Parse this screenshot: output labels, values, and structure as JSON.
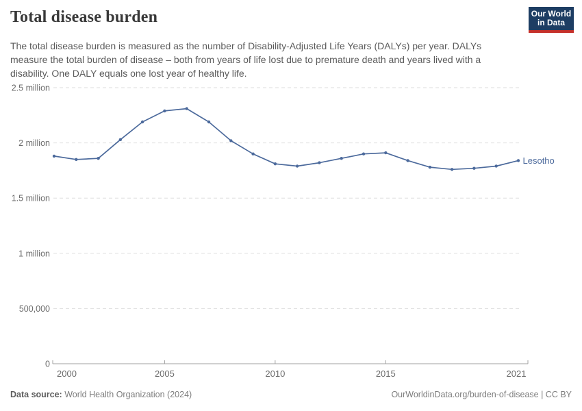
{
  "header": {
    "title": "Total disease burden",
    "subtitle": "The total disease burden is measured as the number of Disability-Adjusted Life Years (DALYs) per year. DALYs measure the total burden of disease – both from years of life lost due to premature death and years lived with a disability. One DALY equals one lost year of healthy life."
  },
  "logo": {
    "line1": "Our World",
    "line2": "in Data",
    "bg_color": "#1d3d63",
    "accent_color": "#c5312b"
  },
  "chart_data": {
    "type": "line",
    "title": "Total disease burden",
    "unit": "DALYs per year",
    "x": [
      2000,
      2001,
      2002,
      2003,
      2004,
      2005,
      2006,
      2007,
      2008,
      2009,
      2010,
      2011,
      2012,
      2013,
      2014,
      2015,
      2016,
      2017,
      2018,
      2019,
      2020,
      2021
    ],
    "series": [
      {
        "name": "Lesotho",
        "color": "#4c6a9c",
        "values": [
          1880000,
          1850000,
          1860000,
          2030000,
          2190000,
          2290000,
          2310000,
          2190000,
          2020000,
          1900000,
          1810000,
          1790000,
          1820000,
          1860000,
          1900000,
          1910000,
          1840000,
          1780000,
          1760000,
          1770000,
          1790000,
          1840000
        ]
      }
    ],
    "ylim": [
      0,
      2500000
    ],
    "yticks": [
      {
        "value": 0,
        "label": "0"
      },
      {
        "value": 500000,
        "label": "500,000"
      },
      {
        "value": 1000000,
        "label": "1 million"
      },
      {
        "value": 1500000,
        "label": "1.5 million"
      },
      {
        "value": 2000000,
        "label": "2 million"
      },
      {
        "value": 2500000,
        "label": "2.5 million"
      }
    ],
    "xticks": [
      2000,
      2005,
      2010,
      2015,
      2021
    ],
    "grid": "horizontal-dashed",
    "legend_position": "end-of-line"
  },
  "footer": {
    "source_label": "Data source:",
    "source_value": " World Health Organization (2024)",
    "link": "OurWorldinData.org/burden-of-disease",
    "separator": " | ",
    "license": "CC BY"
  }
}
